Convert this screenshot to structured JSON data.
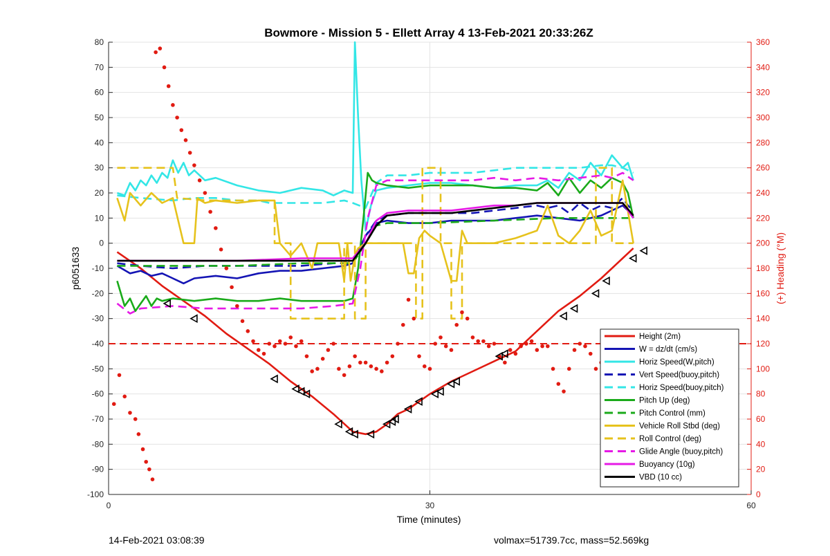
{
  "chart_data": {
    "type": "line",
    "title": "Bowmore - Mission 5 - Ellett Array 4 13-Feb-2021 20:33:26Z",
    "xlabel": "Time (minutes)",
    "ylabel": "p6051633",
    "y2label": "(+) Heading (°M)",
    "xlim": [
      0,
      60
    ],
    "ylim": [
      -100,
      80
    ],
    "y2lim": [
      0,
      360
    ],
    "xticks": [
      0,
      30,
      60
    ],
    "yticks": [
      80,
      70,
      60,
      50,
      40,
      30,
      20,
      10,
      0,
      -10,
      -20,
      -30,
      -40,
      -50,
      -60,
      -70,
      -80,
      -90,
      -100
    ],
    "y2ticks": [
      360,
      340,
      320,
      300,
      280,
      260,
      240,
      220,
      200,
      180,
      160,
      140,
      120,
      100,
      80,
      60,
      40,
      20,
      0
    ],
    "grid": true,
    "legend_position": "bottom-right",
    "colors": {
      "red": "#e11b12",
      "blue": "#1414b4",
      "cyan": "#33e6e6",
      "green": "#1aaa1a",
      "yellow": "#e6c21c",
      "magenta": "#e619e6",
      "black": "#000000",
      "grid": "#e3e3e3"
    },
    "series": [
      {
        "name": "Height (2m)",
        "color": "#e11b12",
        "dash": false,
        "x": [
          0.8,
          3,
          5,
          7,
          9,
          11,
          13,
          15,
          17,
          19,
          21,
          22.8,
          24,
          25,
          26,
          27,
          28,
          30,
          32,
          34,
          36,
          38,
          40,
          42,
          44,
          46,
          48,
          49
        ],
        "y": [
          -3.5,
          -10,
          -17,
          -23,
          -29,
          -36,
          -42,
          -48,
          -55,
          -61,
          -68,
          -75,
          -76,
          -75,
          -72,
          -68,
          -66,
          -60,
          -55,
          -51,
          -47,
          -43,
          -35,
          -27,
          -21,
          -14,
          -6,
          -2
        ]
      },
      {
        "name": "W = dz/dt (cm/s)",
        "color": "#1414b4",
        "dash": false,
        "x": [
          0.8,
          2,
          3,
          4,
          5,
          6,
          7,
          8,
          10,
          12,
          14,
          16,
          18,
          20,
          22,
          22.8,
          24,
          25,
          26,
          28,
          30,
          32,
          34,
          36,
          38,
          40,
          42,
          44,
          46,
          48,
          48.5,
          49
        ],
        "y": [
          -9,
          -12,
          -11,
          -13,
          -12,
          -14,
          -16,
          -14,
          -13,
          -14,
          -12,
          -11,
          -11,
          -10,
          -9,
          -8,
          3,
          8,
          9,
          8,
          8,
          9,
          9,
          9,
          10,
          11,
          10,
          9,
          11,
          15,
          13,
          10
        ]
      },
      {
        "name": "Horiz Speed(W,pitch)",
        "color": "#33e6e6",
        "dash": false,
        "x": [
          0.8,
          1.5,
          2,
          2.5,
          3,
          3.5,
          4,
          4.5,
          5,
          5.5,
          6,
          6.5,
          7,
          7.5,
          8,
          9,
          10,
          12,
          14,
          16,
          18,
          20,
          21,
          22,
          22.8,
          23,
          23.3,
          23.6,
          24,
          24.5,
          25,
          26,
          28,
          30,
          32,
          34,
          36,
          38,
          40,
          41,
          42,
          43,
          44,
          45,
          46,
          47,
          48,
          48.5,
          49
        ],
        "y": [
          20,
          19,
          24,
          21,
          25,
          23,
          27,
          24,
          28,
          26,
          33,
          28,
          32,
          27,
          29,
          25,
          26,
          23,
          21,
          20,
          22,
          21,
          19,
          21,
          20,
          80,
          50,
          25,
          5,
          15,
          21,
          22,
          23,
          24,
          24,
          23,
          22,
          23,
          23,
          25,
          22,
          28,
          25,
          32,
          27,
          35,
          30,
          32,
          25
        ]
      },
      {
        "name": "Vert Speed(buoy,pitch)",
        "color": "#1414b4",
        "dash": true,
        "x": [
          0.8,
          3,
          6,
          9,
          12,
          15,
          18,
          21,
          22.8,
          24,
          25,
          26,
          28,
          30,
          32,
          34,
          36,
          38,
          40,
          41,
          42,
          43,
          44,
          45,
          46,
          47,
          48,
          48.5,
          49
        ],
        "y": [
          -8,
          -9,
          -10,
          -9,
          -9,
          -9,
          -9,
          -8,
          -8,
          3,
          9,
          11,
          12,
          12,
          12,
          12,
          13,
          14,
          15,
          14,
          15,
          12,
          16,
          13,
          15,
          14,
          18,
          15,
          13
        ]
      },
      {
        "name": "Horiz Speed(buoy,pitch)",
        "color": "#33e6e6",
        "dash": true,
        "x": [
          0.8,
          3,
          6,
          8,
          10,
          12,
          14,
          15,
          16,
          18,
          20,
          22,
          22.8,
          24,
          25,
          26,
          28,
          30,
          32,
          34,
          36,
          38,
          40,
          42,
          44,
          46,
          47,
          48,
          49
        ],
        "y": [
          19,
          18,
          17,
          18,
          18,
          17,
          17,
          16,
          16,
          16,
          16,
          17,
          16,
          14,
          24,
          27,
          27,
          28,
          28,
          28,
          29,
          30,
          30,
          30,
          30,
          31,
          31,
          30,
          28
        ]
      },
      {
        "name": "Pitch Up (deg)",
        "color": "#1aaa1a",
        "dash": false,
        "x": [
          0.8,
          1.5,
          2,
          2.5,
          3,
          3.5,
          4,
          4.5,
          5,
          6,
          8,
          10,
          12,
          14,
          16,
          18,
          20,
          22,
          22.8,
          23.3,
          23.8,
          24.2,
          24.6,
          25,
          26,
          28,
          30,
          32,
          34,
          36,
          38,
          40,
          41,
          42,
          43,
          44,
          45,
          46,
          47,
          48,
          48.5,
          49
        ],
        "y": [
          -15,
          -25,
          -22,
          -27,
          -24,
          -21,
          -25,
          -22,
          -23,
          -22,
          -23,
          -22,
          -23,
          -23,
          -22,
          -23,
          -23,
          -23,
          -22,
          -10,
          10,
          28,
          25,
          24,
          23,
          22,
          23,
          23,
          23,
          22,
          22,
          21,
          24,
          19,
          26,
          20,
          25,
          22,
          26,
          24,
          20,
          10
        ]
      },
      {
        "name": "Pitch Control (mm)",
        "color": "#1aaa1a",
        "dash": true,
        "x": [
          0.8,
          6,
          12,
          18,
          22.8,
          24,
          25,
          26,
          30,
          36,
          42,
          48,
          49
        ],
        "y": [
          -9,
          -9,
          -9,
          -8,
          -8,
          0,
          7,
          8,
          8,
          9,
          10,
          10,
          10
        ]
      },
      {
        "name": "Vehicle Roll Stbd (deg)",
        "color": "#e6c21c",
        "dash": false,
        "x": [
          0.8,
          1.5,
          2,
          3,
          4,
          5,
          6,
          7,
          8,
          8.3,
          8.6,
          9,
          10,
          12,
          14,
          15.5,
          16,
          17,
          18,
          19,
          19.5,
          20,
          21,
          21.5,
          22,
          22.3,
          22.6,
          23,
          23.3,
          24,
          25,
          26,
          27,
          27.5,
          28,
          28.5,
          29,
          29.5,
          30,
          31,
          32,
          32.5,
          33,
          33.5,
          34,
          36,
          38,
          40,
          41,
          42,
          43,
          44,
          45,
          46,
          47,
          48,
          49
        ],
        "y": [
          18,
          9,
          20,
          15,
          20,
          16,
          18,
          0,
          0,
          18,
          17,
          16,
          17,
          16,
          17,
          17,
          0,
          -5,
          0,
          -10,
          0,
          0,
          0,
          0,
          -15,
          0,
          -15,
          -5,
          -2,
          0,
          0,
          0,
          0,
          0,
          -12,
          -12,
          2,
          5,
          3,
          0,
          -15,
          -15,
          5,
          0,
          0,
          0,
          2,
          5,
          15,
          3,
          0,
          5,
          13,
          3,
          5,
          25,
          0
        ]
      },
      {
        "name": "Roll Control (deg)",
        "color": "#e6c21c",
        "dash": true,
        "x": [
          0.8,
          6,
          6.4,
          9,
          14,
          15.5,
          15.5,
          17,
          17,
          22,
          22,
          23,
          23,
          24,
          24,
          28.7,
          28.7,
          29.3,
          29.3,
          31,
          31,
          32,
          32,
          33,
          33,
          36,
          36,
          38.5,
          38.5,
          42,
          42,
          45.5,
          45.5,
          47,
          47,
          49
        ],
        "y": [
          30,
          30,
          18,
          17,
          17,
          17,
          0,
          0,
          -30,
          -30,
          0,
          0,
          -30,
          -30,
          0,
          0,
          -30,
          -30,
          30,
          30,
          0,
          0,
          -30,
          -30,
          0,
          0,
          0,
          0,
          0,
          0,
          0,
          0,
          30,
          30,
          0,
          0
        ]
      },
      {
        "name": "Glide Angle (buoy,pitch)",
        "color": "#e619e6",
        "dash": true,
        "x": [
          0.8,
          2,
          3,
          6,
          9,
          12,
          15,
          18,
          21,
          22.8,
          23.5,
          24.2,
          25,
          26,
          28,
          30,
          32,
          34,
          36,
          38,
          40,
          42,
          44,
          46,
          47,
          48,
          49
        ],
        "y": [
          -24,
          -28,
          -26,
          -25,
          -26,
          -26,
          -26,
          -26,
          -25,
          -24,
          -10,
          10,
          23,
          25,
          25,
          25,
          25,
          25,
          26,
          25,
          26,
          25,
          26,
          27,
          26,
          28,
          25
        ]
      },
      {
        "name": "Buoyancy (10g)",
        "color": "#e619e6",
        "dash": false,
        "x": [
          0.8,
          6,
          12,
          18,
          22.8,
          24,
          25,
          26,
          28,
          30,
          32,
          34,
          36,
          38,
          40,
          42,
          44,
          46,
          48,
          49
        ],
        "y": [
          -7,
          -7,
          -7,
          -6,
          -6,
          0,
          9,
          12,
          13,
          13,
          13,
          14,
          15,
          15,
          16,
          16,
          16,
          16,
          16,
          10
        ]
      },
      {
        "name": "VBD (10 cc)",
        "color": "#000000",
        "dash": false,
        "x": [
          0.8,
          6,
          12,
          18,
          22.8,
          24,
          25,
          26,
          28,
          30,
          32,
          34,
          36,
          38,
          40,
          42,
          44,
          46,
          48,
          49
        ],
        "y": [
          -7,
          -7,
          -7,
          -7,
          -7,
          0,
          7,
          11,
          12,
          12,
          12,
          13,
          14,
          15,
          16,
          16,
          16,
          16,
          16,
          11
        ]
      }
    ],
    "extra_series": [
      {
        "label": "heading_target",
        "color": "#e11b12",
        "dash": true,
        "axis": "y2",
        "x": [
          0,
          60
        ],
        "y": [
          120,
          120
        ]
      },
      {
        "label": "heading_points",
        "color": "#e11b12",
        "marker": "dot",
        "axis": "y2",
        "x": [
          0.5,
          1.0,
          1.5,
          2.0,
          2.5,
          2.8,
          3.2,
          3.5,
          3.8,
          4.1,
          4.4,
          4.8,
          5.2,
          5.6,
          6.0,
          6.4,
          6.8,
          7.2,
          7.6,
          8.0,
          8.5,
          9.0,
          9.5,
          10.0,
          10.5,
          11.0,
          11.5,
          12.0,
          12.5,
          13.0,
          13.5,
          14.0,
          14.5,
          15.0,
          15.5,
          16.0,
          16.5,
          17.0,
          17.5,
          18.0,
          18.5,
          19.0,
          19.5,
          20.0,
          20.5,
          21.0,
          21.5,
          22.0,
          22.5,
          23.0,
          23.5,
          24.0,
          24.5,
          25.0,
          25.5,
          26.0,
          26.5,
          27.0,
          27.5,
          28.0,
          28.5,
          29.0,
          29.5,
          30.0,
          30.5,
          31.0,
          31.5,
          32.0,
          32.5,
          33.0,
          33.5,
          34.0,
          34.5,
          35.0,
          35.5,
          36.0,
          36.5,
          37.0,
          37.5,
          38.0,
          38.5,
          39.0,
          39.5,
          40.0,
          40.5,
          41.0,
          41.5,
          42.0,
          42.5,
          43.0,
          43.5,
          44.0,
          44.5,
          45.0,
          45.5,
          46.0,
          46.5,
          47.0,
          47.5
        ],
        "y": [
          72,
          95,
          78,
          65,
          60,
          48,
          36,
          26,
          20,
          12,
          352,
          355,
          340,
          325,
          310,
          300,
          290,
          282,
          272,
          262,
          250,
          240,
          225,
          212,
          195,
          180,
          165,
          150,
          138,
          130,
          122,
          115,
          112,
          120,
          118,
          122,
          120,
          125,
          118,
          122,
          110,
          98,
          100,
          108,
          115,
          120,
          100,
          95,
          102,
          110,
          105,
          105,
          102,
          100,
          98,
          105,
          110,
          120,
          135,
          155,
          140,
          110,
          102,
          100,
          120,
          125,
          118,
          115,
          135,
          145,
          140,
          125,
          122,
          122,
          118,
          120,
          110,
          105,
          115,
          112,
          118,
          120,
          122,
          115,
          118,
          118,
          100,
          88,
          82,
          100,
          115,
          120,
          118,
          112,
          100,
          105,
          110,
          120,
          118
        ]
      },
      {
        "label": "dive_markers",
        "color": "#000000",
        "marker": "triangle-left",
        "axis": "y",
        "x": [
          5.5,
          8.0,
          15.5,
          17.5,
          18.0,
          18.5,
          21.5,
          22.5,
          23.0,
          24.5,
          26.0,
          26.5,
          26.8,
          28.0,
          29.0,
          30.5,
          31.0,
          32.0,
          32.5,
          36.5,
          37.0,
          42.5,
          43.5,
          45.5,
          46.5,
          49.0,
          50.0
        ],
        "y": [
          -24,
          -30,
          -54,
          -58,
          -59,
          -60,
          -72,
          -75,
          -76,
          -76,
          -72,
          -71,
          -70,
          -66,
          -63,
          -60,
          -59,
          -56,
          -55,
          -45,
          -44,
          -29,
          -26,
          -20,
          -15,
          -6,
          -3
        ]
      }
    ]
  },
  "footer": {
    "left": "14-Feb-2021 03:08:39",
    "right": "volmax=51739.7cc, mass=52.569kg"
  }
}
